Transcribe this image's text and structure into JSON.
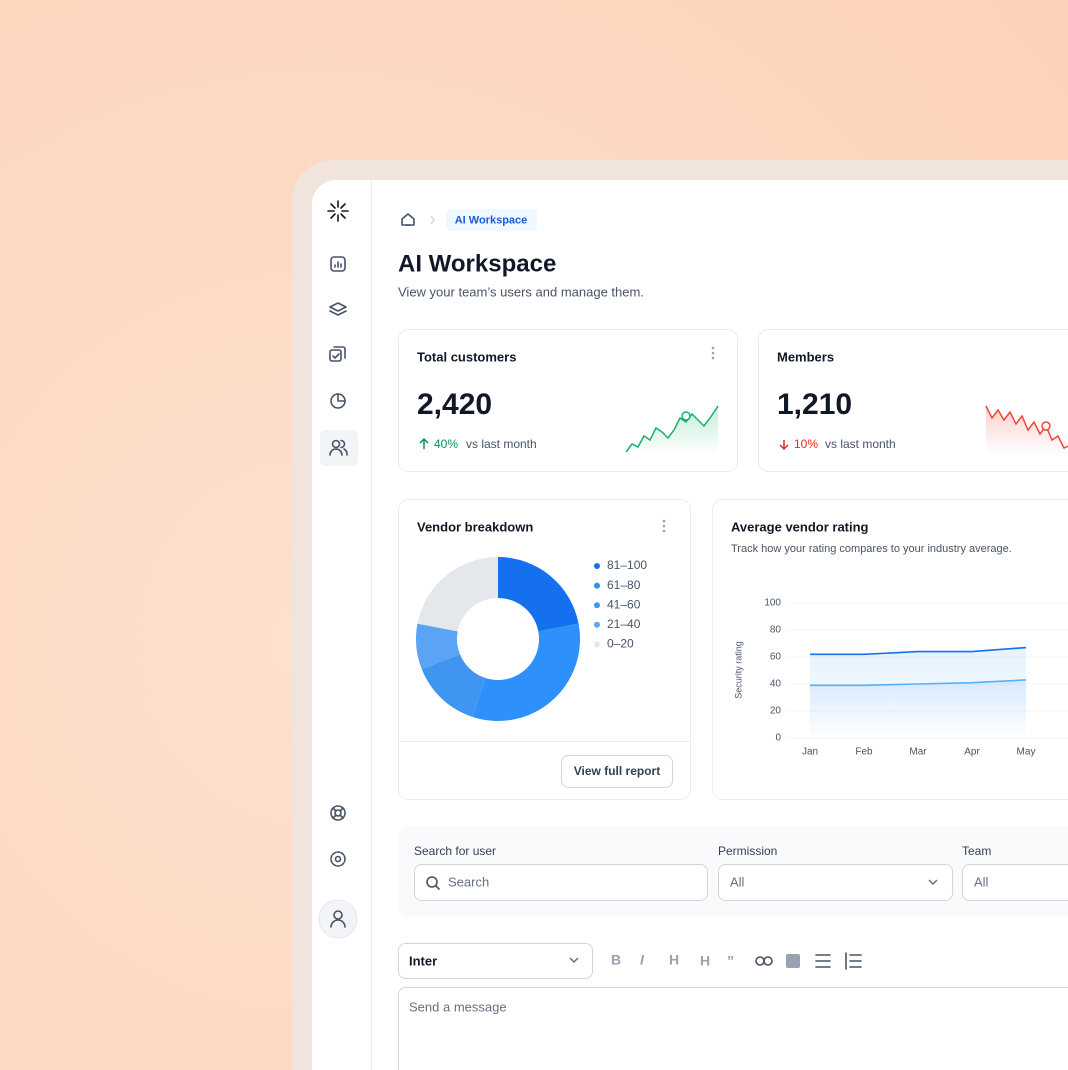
{
  "breadcrumb": {
    "current": "AI Workspace"
  },
  "header": {
    "title": "AI Workspace",
    "subtitle": "View your team’s users and manage them."
  },
  "stats": [
    {
      "title": "Total customers",
      "value": "2,420",
      "change": "40%",
      "comparison": "vs last month"
    },
    {
      "title": "Members",
      "value": "1,210",
      "change": "10%",
      "comparison": "vs last month"
    }
  ],
  "vendor_button": "View full report",
  "chart_data": [
    {
      "type": "pie",
      "title": "Vendor breakdown",
      "categories": [
        "81–100",
        "61–80",
        "41–60",
        "21–40",
        "0–20"
      ],
      "values": [
        22,
        33,
        14,
        9,
        22
      ],
      "colors": [
        "#1570ef",
        "#2e90fa",
        "#3f95f0",
        "#5ba4f5",
        "#e4e7ec"
      ]
    },
    {
      "type": "line",
      "title": "Average vendor rating",
      "subtitle": "Track how your rating compares to your industry average.",
      "y_label": "Security rating",
      "categories": [
        "Jan",
        "Feb",
        "Mar",
        "Apr",
        "May"
      ],
      "series": [
        {
          "color": "#1570ef",
          "values": [
            62,
            62,
            64,
            64,
            67
          ]
        },
        {
          "color": "#53b1fd",
          "values": [
            39,
            39,
            40,
            41,
            43
          ]
        }
      ],
      "ylim": [
        0,
        100
      ],
      "yticks": [
        0,
        20,
        40,
        60,
        80,
        100
      ],
      "grid": true
    }
  ],
  "filters": {
    "search_label": "Search for user",
    "search_placeholder": "Search",
    "permission_label": "Permission",
    "permission_value": "All",
    "team_label": "Team",
    "team_value": "All"
  },
  "editor": {
    "font": "Inter",
    "placeholder": "Send a message"
  }
}
